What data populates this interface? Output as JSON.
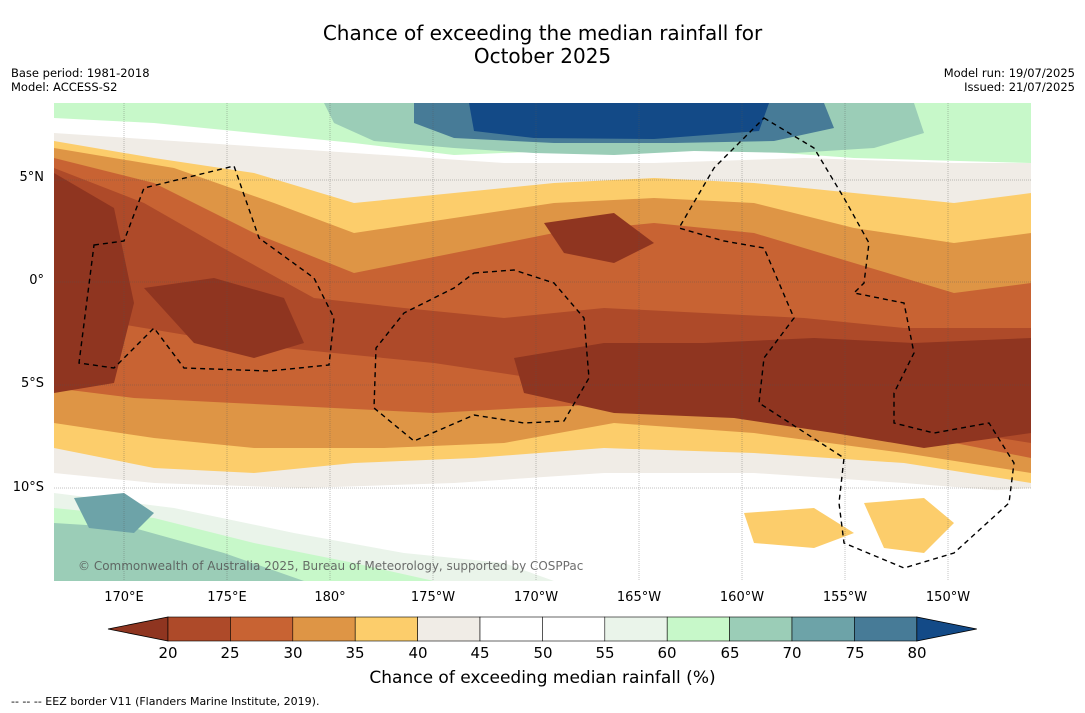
{
  "title_line1": "Chance of exceeding the median rainfall for",
  "title_line2": "October 2025",
  "base_period": "Base period: 1981-2018",
  "model": "Model: ACCESS-S2",
  "model_run": "Model run: 19/07/2025",
  "issued": "Issued: 21/07/2025",
  "copyright": "© Commonwealth of Australia 2025, Bureau of Meteorology, supported by COSPPac",
  "lat_ticks": [
    "5°N",
    "0°",
    "5°S",
    "10°S"
  ],
  "lon_ticks": [
    "170°E",
    "175°E",
    "180°",
    "175°W",
    "170°W",
    "165°W",
    "160°W",
    "155°W",
    "150°W"
  ],
  "colorbar": {
    "title": "Chance of exceeding median rainfall (%)",
    "labels": [
      "20",
      "25",
      "30",
      "35",
      "40",
      "45",
      "50",
      "55",
      "60",
      "65",
      "70",
      "75",
      "80"
    ],
    "colors": [
      "#8f3520",
      "#ae4a29",
      "#c86333",
      "#de9545",
      "#fccd6b",
      "#f0ece6",
      "#ffffff",
      "#ffffff",
      "#eaf4ea",
      "#c7f8c9",
      "#9bcdb7",
      "#6da3a8",
      "#477b97",
      "#134a87"
    ]
  },
  "footnote": "-- -- -- EEZ border V11 (Flanders Marine Institute, 2019)."
}
